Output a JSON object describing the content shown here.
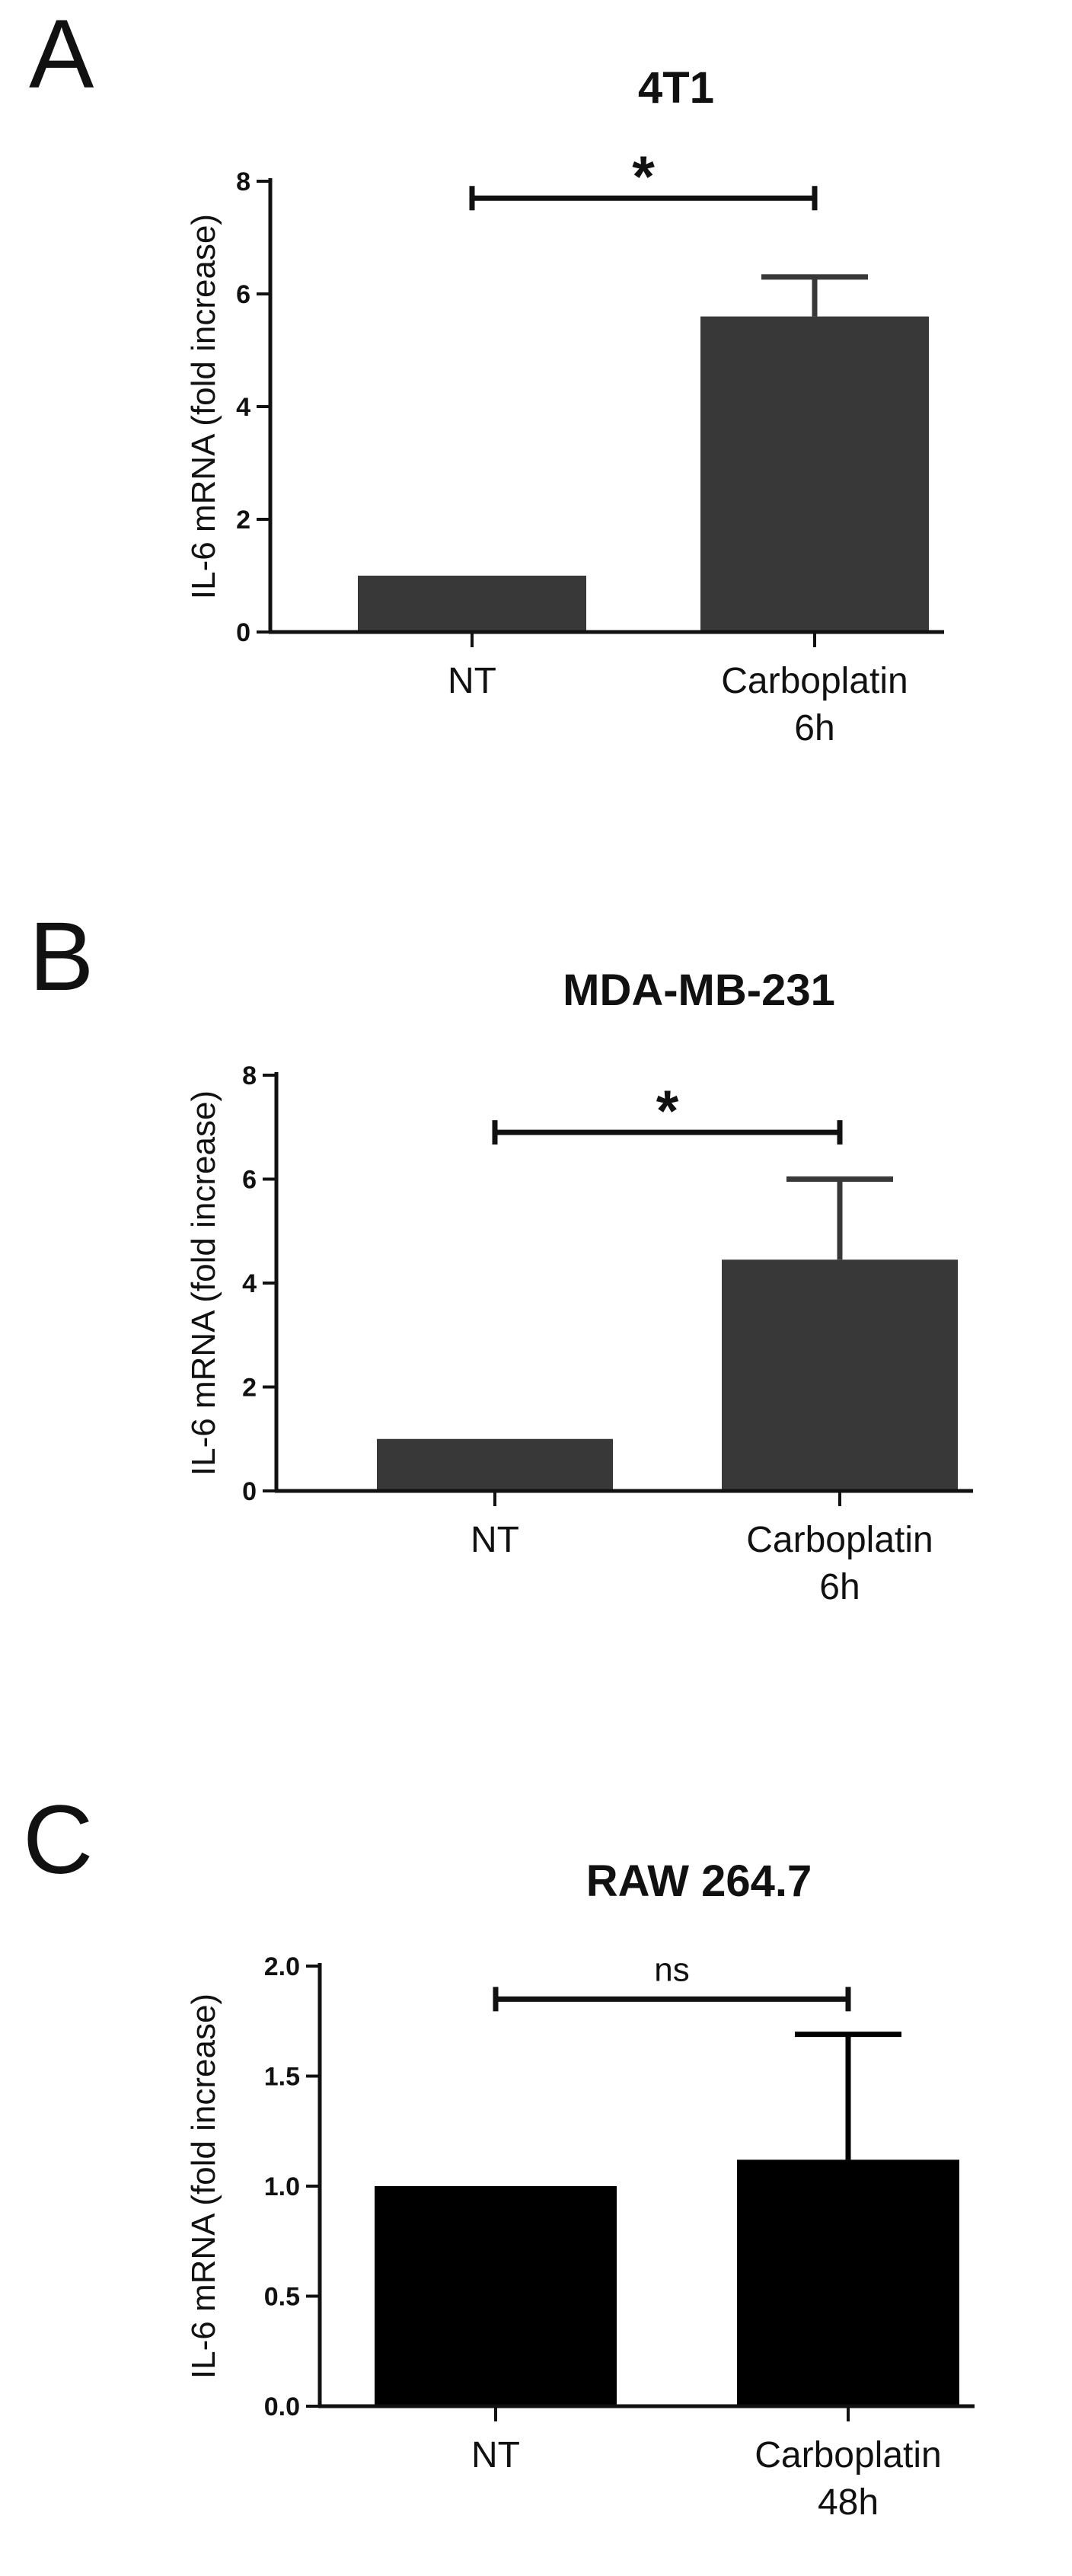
{
  "chart_data": [
    {
      "panel": "A",
      "type": "bar",
      "title": "4T1",
      "ylabel": "IL-6 mRNA (fold increase)",
      "xlabel": "",
      "categories": [
        [
          "NT"
        ],
        [
          "Carboplatin",
          "6h"
        ]
      ],
      "values": [
        1.0,
        5.6
      ],
      "error_upper": [
        0.0,
        0.7
      ],
      "ylim": [
        0,
        8
      ],
      "yticks": [
        0,
        2,
        4,
        6,
        8
      ],
      "ytick_labels": [
        "0",
        "2",
        "4",
        "6",
        "8"
      ],
      "bar_color": "#383838",
      "significance": {
        "label": "*",
        "between": [
          0,
          1
        ],
        "y": 7.7
      },
      "grid": false
    },
    {
      "panel": "B",
      "type": "bar",
      "title": "MDA-MB-231",
      "ylabel": "IL-6 mRNA (fold increase)",
      "xlabel": "",
      "categories": [
        [
          "NT"
        ],
        [
          "Carboplatin",
          "6h"
        ]
      ],
      "values": [
        1.0,
        4.45
      ],
      "error_upper": [
        0.0,
        1.55
      ],
      "ylim": [
        0,
        8
      ],
      "yticks": [
        0,
        2,
        4,
        6,
        8
      ],
      "ytick_labels": [
        "0",
        "2",
        "4",
        "6",
        "8"
      ],
      "bar_color": "#383838",
      "significance": {
        "label": "*",
        "between": [
          0,
          1
        ],
        "y": 6.9
      },
      "grid": false
    },
    {
      "panel": "C",
      "type": "bar",
      "title": "RAW 264.7",
      "ylabel": "IL-6 mRNA (fold increase)",
      "xlabel": "",
      "categories": [
        [
          "NT"
        ],
        [
          "Carboplatin",
          "48h"
        ]
      ],
      "values": [
        1.0,
        1.12
      ],
      "error_upper": [
        0.0,
        0.57
      ],
      "ylim": [
        0,
        2.0
      ],
      "yticks": [
        0,
        0.5,
        1.0,
        1.5,
        2.0
      ],
      "ytick_labels": [
        "0.0",
        "0.5",
        "1.0",
        "1.5",
        "2.0"
      ],
      "bar_color": "#000000",
      "significance": {
        "label": "ns",
        "between": [
          0,
          1
        ],
        "y": 1.85
      },
      "grid": false
    }
  ]
}
